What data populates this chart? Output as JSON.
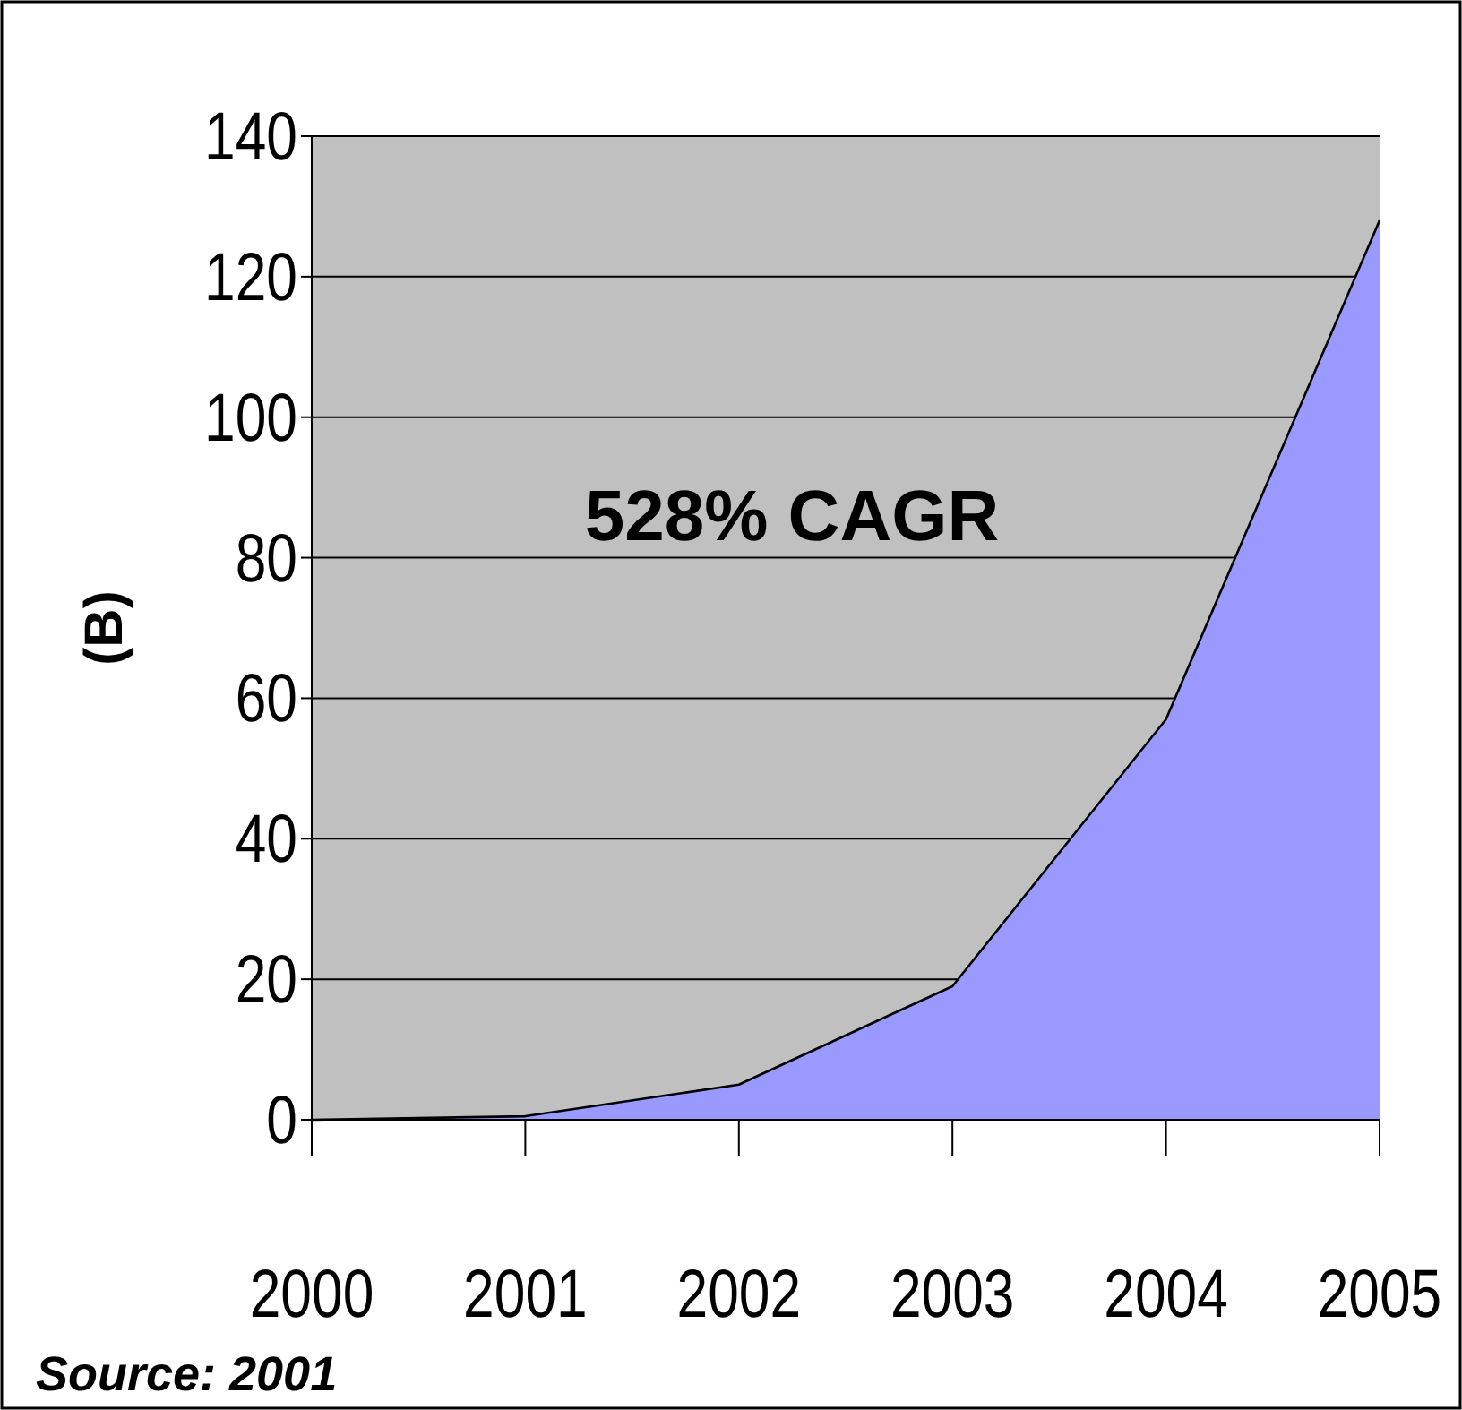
{
  "chart_data": {
    "type": "area",
    "ylabel": "(B)",
    "categories": [
      "2000",
      "2001",
      "2002",
      "2003",
      "2004",
      "2005"
    ],
    "series": [
      {
        "color": "#9999ff",
        "values": [
          0,
          0.5,
          5,
          19,
          57,
          128
        ]
      }
    ],
    "ylim": [
      0,
      140
    ],
    "yticks": [
      0,
      20,
      40,
      60,
      80,
      100,
      120,
      140
    ],
    "grid": "y",
    "annotations": [
      "528% CAGR",
      "Source: 2001"
    ]
  }
}
